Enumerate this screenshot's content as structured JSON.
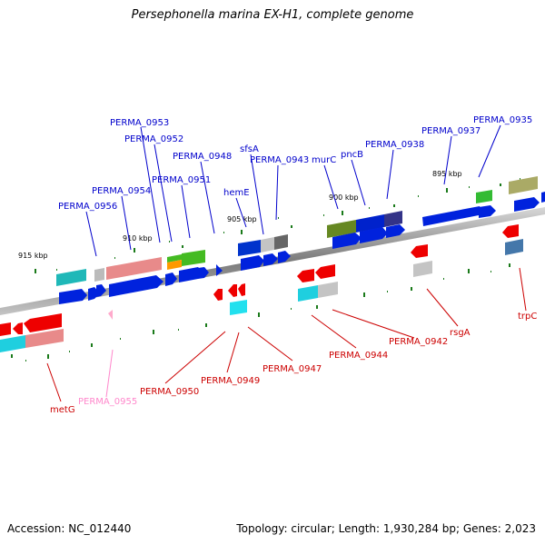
{
  "title": "Persephonella marina EX-H1, complete genome",
  "footer": {
    "accession": "Accession: NC_012440",
    "summary": "Topology: circular; Length: 1,930,284 bp; Genes: 2,023"
  },
  "colors": {
    "forward_label": "#0000cc",
    "reverse_label": "#cc0000",
    "pseudo_label": "#ff88cc",
    "backbone": "#888888",
    "tick": "#1a7a1a"
  },
  "scale_labels": [
    "915 kbp",
    "910 kbp",
    "905 kbp",
    "900 kbp",
    "895 kbp"
  ],
  "forward_genes": [
    "PERMA_0956",
    "PERMA_0954",
    "PERMA_0953",
    "PERMA_0952",
    "PERMA_0951",
    "PERMA_0948",
    "hemE",
    "sfsA",
    "PERMA_0943",
    "murC",
    "pncB",
    "PERMA_0938",
    "PERMA_0937",
    "PERMA_0935"
  ],
  "reverse_genes": [
    "metG",
    "PERMA_0955",
    "PERMA_0950",
    "PERMA_0949",
    "PERMA_0947",
    "PERMA_0944",
    "PERMA_0942",
    "rsgA",
    "trpC"
  ]
}
